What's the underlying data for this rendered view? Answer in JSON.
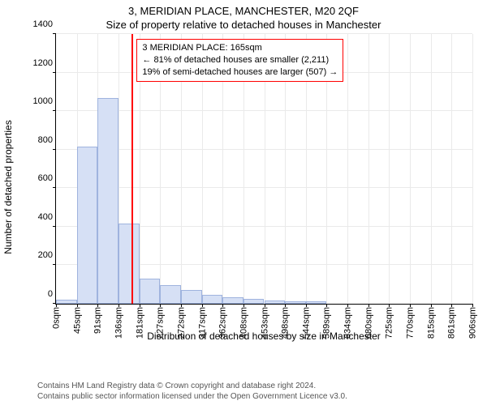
{
  "title_top": "3, MERIDIAN PLACE, MANCHESTER, M20 2QF",
  "title_sub": "Size of property relative to detached houses in Manchester",
  "ylabel": "Number of detached properties",
  "xlabel": "Distribution of detached houses by size in Manchester",
  "footer_line1": "Contains HM Land Registry data © Crown copyright and database right 2024.",
  "footer_line2": "Contains public sector information licensed under the Open Government Licence v3.0.",
  "chart": {
    "type": "histogram",
    "ymin": 0,
    "ymax": 1400,
    "yticks": [
      0,
      200,
      400,
      600,
      800,
      1000,
      1200,
      1400
    ],
    "xticks": [
      "0sqm",
      "45sqm",
      "91sqm",
      "136sqm",
      "181sqm",
      "227sqm",
      "272sqm",
      "317sqm",
      "362sqm",
      "408sqm",
      "453sqm",
      "498sqm",
      "544sqm",
      "589sqm",
      "634sqm",
      "680sqm",
      "725sqm",
      "770sqm",
      "815sqm",
      "861sqm",
      "906sqm"
    ],
    "bars": [
      20,
      815,
      1070,
      415,
      130,
      95,
      70,
      45,
      35,
      25,
      18,
      14,
      12,
      0,
      0,
      0,
      0,
      0,
      0,
      0
    ],
    "bar_fill": "#d6e0f5",
    "bar_border": "#9fb3de",
    "grid_color": "#eaeaea",
    "axis_color": "#000000",
    "reference_value": 165,
    "reference_domain_max": 906,
    "reference_color": "#ff0000",
    "label_box": {
      "line1": "3 MERIDIAN PLACE: 165sqm",
      "line2": "← 81% of detached houses are smaller (2,211)",
      "line3": "19% of semi-detached houses are larger (507) →",
      "border_color": "#ff0000"
    }
  }
}
